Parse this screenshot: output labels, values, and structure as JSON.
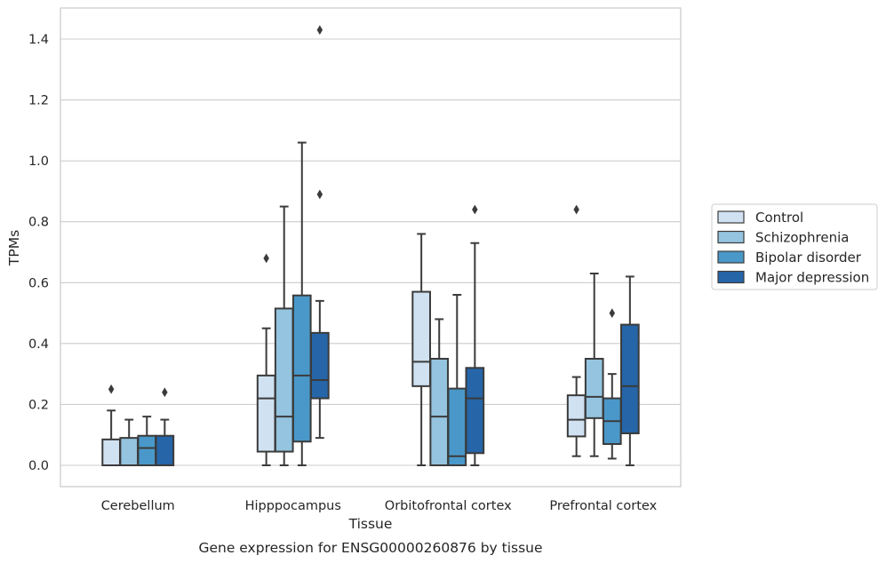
{
  "chart_data": {
    "type": "box",
    "xlabel": "Tissue",
    "ylabel": "TPMs",
    "caption": "Gene expression for ENSG00000260876 by tissue",
    "ylim": [
      -0.07,
      1.5
    ],
    "yticks": [
      "0.0",
      "0.2",
      "0.4",
      "0.6",
      "0.8",
      "1.0",
      "1.2",
      "1.4"
    ],
    "grid": true,
    "legend_position": "right",
    "categories": [
      "Cerebellum",
      "Hipppocampus",
      "Orbitofrontal cortex",
      "Prefrontal cortex"
    ],
    "series": [
      {
        "name": "Control",
        "color": "#d0e1f2",
        "boxes": [
          {
            "whislo": 0.0,
            "q1": 0.0,
            "med": 0.0,
            "q3": 0.085,
            "whishi": 0.18,
            "fliers": [
              0.25
            ]
          },
          {
            "whislo": 0.0,
            "q1": 0.045,
            "med": 0.22,
            "q3": 0.295,
            "whishi": 0.45,
            "fliers": [
              0.68
            ]
          },
          {
            "whislo": 0.0,
            "q1": 0.26,
            "med": 0.34,
            "q3": 0.57,
            "whishi": 0.76,
            "fliers": []
          },
          {
            "whislo": 0.03,
            "q1": 0.095,
            "med": 0.15,
            "q3": 0.23,
            "whishi": 0.29,
            "fliers": [
              0.84
            ]
          }
        ]
      },
      {
        "name": "Schizophrenia",
        "color": "#94c4df",
        "boxes": [
          {
            "whislo": 0.0,
            "q1": 0.0,
            "med": 0.0,
            "q3": 0.09,
            "whishi": 0.15,
            "fliers": []
          },
          {
            "whislo": 0.0,
            "q1": 0.045,
            "med": 0.16,
            "q3": 0.515,
            "whishi": 0.85,
            "fliers": []
          },
          {
            "whislo": 0.0,
            "q1": 0.0,
            "med": 0.16,
            "q3": 0.35,
            "whishi": 0.48,
            "fliers": []
          },
          {
            "whislo": 0.03,
            "q1": 0.155,
            "med": 0.225,
            "q3": 0.35,
            "whishi": 0.63,
            "fliers": []
          }
        ]
      },
      {
        "name": "Bipolar disorder",
        "color": "#4a98c9",
        "boxes": [
          {
            "whislo": 0.0,
            "q1": 0.0,
            "med": 0.057,
            "q3": 0.097,
            "whishi": 0.16,
            "fliers": []
          },
          {
            "whislo": 0.0,
            "q1": 0.078,
            "med": 0.295,
            "q3": 0.558,
            "whishi": 1.06,
            "fliers": []
          },
          {
            "whislo": 0.0,
            "q1": 0.0,
            "med": 0.03,
            "q3": 0.252,
            "whishi": 0.56,
            "fliers": []
          },
          {
            "whislo": 0.022,
            "q1": 0.07,
            "med": 0.145,
            "q3": 0.22,
            "whishi": 0.3,
            "fliers": [
              0.5
            ]
          }
        ]
      },
      {
        "name": "Major depression",
        "color": "#2565a8",
        "boxes": [
          {
            "whislo": 0.0,
            "q1": 0.0,
            "med": 0.0,
            "q3": 0.097,
            "whishi": 0.15,
            "fliers": [
              0.24
            ]
          },
          {
            "whislo": 0.09,
            "q1": 0.22,
            "med": 0.28,
            "q3": 0.435,
            "whishi": 0.54,
            "fliers": [
              0.89,
              1.43
            ]
          },
          {
            "whislo": 0.0,
            "q1": 0.04,
            "med": 0.22,
            "q3": 0.32,
            "whishi": 0.73,
            "fliers": [
              0.84
            ]
          },
          {
            "whislo": 0.0,
            "q1": 0.105,
            "med": 0.26,
            "q3": 0.462,
            "whishi": 0.62,
            "fliers": []
          }
        ]
      }
    ]
  }
}
